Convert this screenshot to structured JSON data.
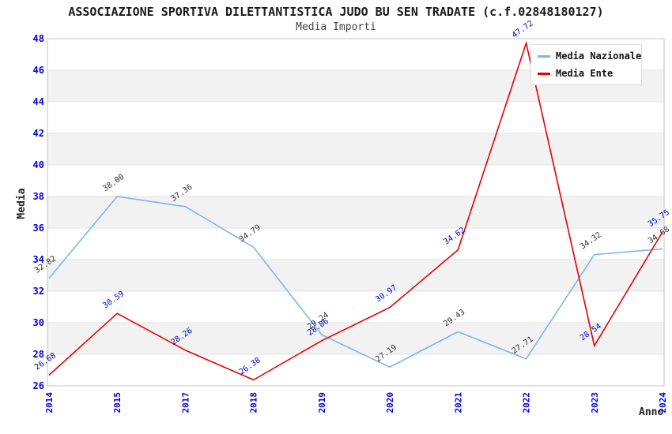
{
  "chart_data": {
    "type": "line",
    "title": "ASSOCIAZIONE SPORTIVA DILETTANTISTICA JUDO BU SEN TRADATE (c.f.02848180127)",
    "subtitle": "Media Importi",
    "xlabel": "Anno",
    "ylabel": "Media",
    "categories": [
      "2014",
      "2015",
      "2017",
      "2018",
      "2019",
      "2020",
      "2021",
      "2022",
      "2023",
      "2024"
    ],
    "series": [
      {
        "name": "Media Nazionale",
        "color": "#7cb5ec",
        "label_color": "#333333",
        "values": [
          32.82,
          38.0,
          37.36,
          34.79,
          29.24,
          27.19,
          29.43,
          27.71,
          34.32,
          34.68
        ]
      },
      {
        "name": "Media Ente",
        "color": "#e60000",
        "label_color": "#0000cc",
        "values": [
          26.68,
          30.59,
          28.26,
          26.38,
          28.86,
          30.97,
          34.62,
          47.72,
          28.54,
          35.75
        ]
      }
    ],
    "ylim": [
      26,
      48
    ],
    "ytick_step": 2,
    "tick_color": "#0000e0",
    "band_colors": [
      "#ffffff",
      "#f2f2f2"
    ],
    "gridline_color": "#e3e3e3",
    "border_color": "#c4c4c4",
    "grid": true,
    "legend_position": "top-right"
  }
}
